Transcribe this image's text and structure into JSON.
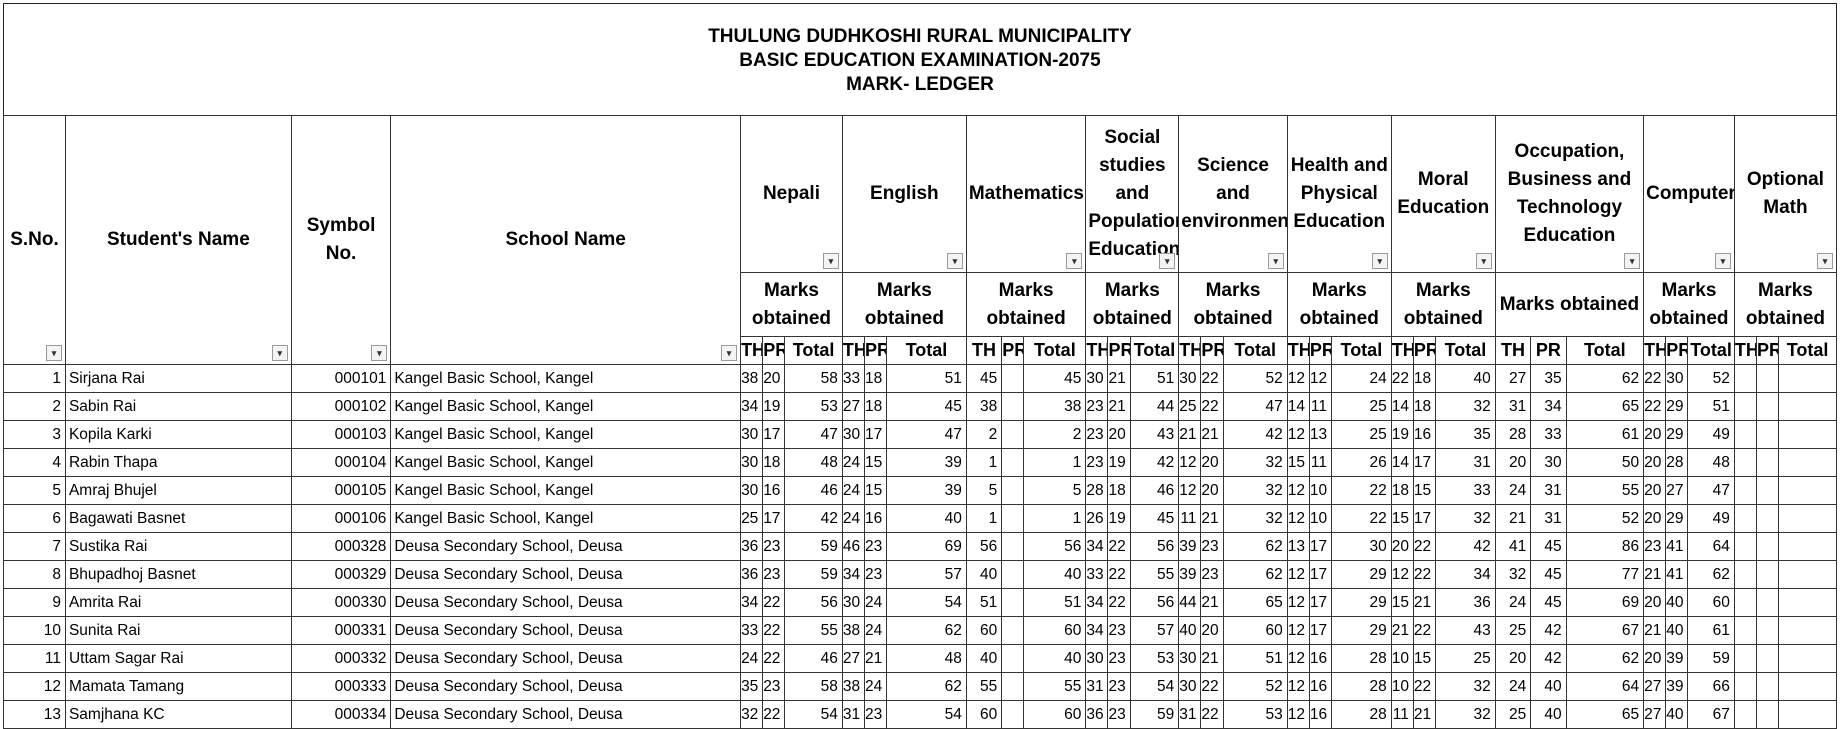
{
  "title": {
    "line1": "THULUNG DUDHKOSHI RURAL MUNICIPALITY",
    "line2": "BASIC EDUCATION EXAMINATION-2075",
    "line3": "MARK- LEDGER"
  },
  "columns": {
    "sno": "S.No.",
    "student_name": "Student's Name",
    "symbol_no": "Symbol No.",
    "school_name": "School Name"
  },
  "subjects": [
    "Nepali",
    "English",
    "Mathematics",
    "Social studies and Population Education",
    "Science and environment",
    "Health and Physical Education",
    "Moral Education",
    "Occupation, Business and Technology Education",
    "Computer",
    "Optional Math"
  ],
  "marks_label": "Marks obtained",
  "sub_labels": {
    "th": "TH",
    "pr": "PR",
    "total": "Total"
  },
  "filter_glyph": "▾",
  "rows": [
    {
      "sno": "1",
      "name": "Sirjana Rai",
      "symbol": "000101",
      "school": "Kangel Basic School, Kangel",
      "marks": [
        [
          "38",
          "20",
          "58"
        ],
        [
          "33",
          "18",
          "51"
        ],
        [
          "45",
          "",
          "45"
        ],
        [
          "30",
          "21",
          "51"
        ],
        [
          "30",
          "22",
          "52"
        ],
        [
          "12",
          "12",
          "24"
        ],
        [
          "22",
          "18",
          "40"
        ],
        [
          "27",
          "35",
          "62"
        ],
        [
          "22",
          "30",
          "52"
        ],
        [
          "",
          "",
          ""
        ]
      ]
    },
    {
      "sno": "2",
      "name": "Sabin Rai",
      "symbol": "000102",
      "school": "Kangel Basic School, Kangel",
      "marks": [
        [
          "34",
          "19",
          "53"
        ],
        [
          "27",
          "18",
          "45"
        ],
        [
          "38",
          "",
          "38"
        ],
        [
          "23",
          "21",
          "44"
        ],
        [
          "25",
          "22",
          "47"
        ],
        [
          "14",
          "11",
          "25"
        ],
        [
          "14",
          "18",
          "32"
        ],
        [
          "31",
          "34",
          "65"
        ],
        [
          "22",
          "29",
          "51"
        ],
        [
          "",
          "",
          ""
        ]
      ]
    },
    {
      "sno": "3",
      "name": "Kopila Karki",
      "symbol": "000103",
      "school": "Kangel Basic School, Kangel",
      "marks": [
        [
          "30",
          "17",
          "47"
        ],
        [
          "30",
          "17",
          "47"
        ],
        [
          "2",
          "",
          "2"
        ],
        [
          "23",
          "20",
          "43"
        ],
        [
          "21",
          "21",
          "42"
        ],
        [
          "12",
          "13",
          "25"
        ],
        [
          "19",
          "16",
          "35"
        ],
        [
          "28",
          "33",
          "61"
        ],
        [
          "20",
          "29",
          "49"
        ],
        [
          "",
          "",
          ""
        ]
      ]
    },
    {
      "sno": "4",
      "name": "Rabin Thapa",
      "symbol": "000104",
      "school": "Kangel Basic School, Kangel",
      "marks": [
        [
          "30",
          "18",
          "48"
        ],
        [
          "24",
          "15",
          "39"
        ],
        [
          "1",
          "",
          "1"
        ],
        [
          "23",
          "19",
          "42"
        ],
        [
          "12",
          "20",
          "32"
        ],
        [
          "15",
          "11",
          "26"
        ],
        [
          "14",
          "17",
          "31"
        ],
        [
          "20",
          "30",
          "50"
        ],
        [
          "20",
          "28",
          "48"
        ],
        [
          "",
          "",
          ""
        ]
      ]
    },
    {
      "sno": "5",
      "name": "Amraj Bhujel",
      "symbol": "000105",
      "school": "Kangel Basic School, Kangel",
      "marks": [
        [
          "30",
          "16",
          "46"
        ],
        [
          "24",
          "15",
          "39"
        ],
        [
          "5",
          "",
          "5"
        ],
        [
          "28",
          "18",
          "46"
        ],
        [
          "12",
          "20",
          "32"
        ],
        [
          "12",
          "10",
          "22"
        ],
        [
          "18",
          "15",
          "33"
        ],
        [
          "24",
          "31",
          "55"
        ],
        [
          "20",
          "27",
          "47"
        ],
        [
          "",
          "",
          ""
        ]
      ]
    },
    {
      "sno": "6",
      "name": "Bagawati Basnet",
      "symbol": "000106",
      "school": "Kangel Basic School, Kangel",
      "marks": [
        [
          "25",
          "17",
          "42"
        ],
        [
          "24",
          "16",
          "40"
        ],
        [
          "1",
          "",
          "1"
        ],
        [
          "26",
          "19",
          "45"
        ],
        [
          "11",
          "21",
          "32"
        ],
        [
          "12",
          "10",
          "22"
        ],
        [
          "15",
          "17",
          "32"
        ],
        [
          "21",
          "31",
          "52"
        ],
        [
          "20",
          "29",
          "49"
        ],
        [
          "",
          "",
          ""
        ]
      ]
    },
    {
      "sno": "7",
      "name": "Sustika Rai",
      "symbol": "000328",
      "school": "Deusa Secondary School, Deusa",
      "marks": [
        [
          "36",
          "23",
          "59"
        ],
        [
          "46",
          "23",
          "69"
        ],
        [
          "56",
          "",
          "56"
        ],
        [
          "34",
          "22",
          "56"
        ],
        [
          "39",
          "23",
          "62"
        ],
        [
          "13",
          "17",
          "30"
        ],
        [
          "20",
          "22",
          "42"
        ],
        [
          "41",
          "45",
          "86"
        ],
        [
          "23",
          "41",
          "64"
        ],
        [
          "",
          "",
          ""
        ]
      ]
    },
    {
      "sno": "8",
      "name": "Bhupadhoj Basnet",
      "symbol": "000329",
      "school": "Deusa Secondary School, Deusa",
      "marks": [
        [
          "36",
          "23",
          "59"
        ],
        [
          "34",
          "23",
          "57"
        ],
        [
          "40",
          "",
          "40"
        ],
        [
          "33",
          "22",
          "55"
        ],
        [
          "39",
          "23",
          "62"
        ],
        [
          "12",
          "17",
          "29"
        ],
        [
          "12",
          "22",
          "34"
        ],
        [
          "32",
          "45",
          "77"
        ],
        [
          "21",
          "41",
          "62"
        ],
        [
          "",
          "",
          ""
        ]
      ]
    },
    {
      "sno": "9",
      "name": "Amrita Rai",
      "symbol": "000330",
      "school": "Deusa Secondary School, Deusa",
      "marks": [
        [
          "34",
          "22",
          "56"
        ],
        [
          "30",
          "24",
          "54"
        ],
        [
          "51",
          "",
          "51"
        ],
        [
          "34",
          "22",
          "56"
        ],
        [
          "44",
          "21",
          "65"
        ],
        [
          "12",
          "17",
          "29"
        ],
        [
          "15",
          "21",
          "36"
        ],
        [
          "24",
          "45",
          "69"
        ],
        [
          "20",
          "40",
          "60"
        ],
        [
          "",
          "",
          ""
        ]
      ]
    },
    {
      "sno": "10",
      "name": "Sunita Rai",
      "symbol": "000331",
      "school": "Deusa Secondary School, Deusa",
      "marks": [
        [
          "33",
          "22",
          "55"
        ],
        [
          "38",
          "24",
          "62"
        ],
        [
          "60",
          "",
          "60"
        ],
        [
          "34",
          "23",
          "57"
        ],
        [
          "40",
          "20",
          "60"
        ],
        [
          "12",
          "17",
          "29"
        ],
        [
          "21",
          "22",
          "43"
        ],
        [
          "25",
          "42",
          "67"
        ],
        [
          "21",
          "40",
          "61"
        ],
        [
          "",
          "",
          ""
        ]
      ]
    },
    {
      "sno": "11",
      "name": "Uttam Sagar Rai",
      "symbol": "000332",
      "school": "Deusa Secondary School, Deusa",
      "marks": [
        [
          "24",
          "22",
          "46"
        ],
        [
          "27",
          "21",
          "48"
        ],
        [
          "40",
          "",
          "40"
        ],
        [
          "30",
          "23",
          "53"
        ],
        [
          "30",
          "21",
          "51"
        ],
        [
          "12",
          "16",
          "28"
        ],
        [
          "10",
          "15",
          "25"
        ],
        [
          "20",
          "42",
          "62"
        ],
        [
          "20",
          "39",
          "59"
        ],
        [
          "",
          "",
          ""
        ]
      ]
    },
    {
      "sno": "12",
      "name": "Mamata Tamang",
      "symbol": "000333",
      "school": "Deusa Secondary School, Deusa",
      "marks": [
        [
          "35",
          "23",
          "58"
        ],
        [
          "38",
          "24",
          "62"
        ],
        [
          "55",
          "",
          "55"
        ],
        [
          "31",
          "23",
          "54"
        ],
        [
          "30",
          "22",
          "52"
        ],
        [
          "12",
          "16",
          "28"
        ],
        [
          "10",
          "22",
          "32"
        ],
        [
          "24",
          "40",
          "64"
        ],
        [
          "27",
          "39",
          "66"
        ],
        [
          "",
          "",
          ""
        ]
      ]
    },
    {
      "sno": "13",
      "name": "Samjhana KC",
      "symbol": "000334",
      "school": "Deusa Secondary School, Deusa",
      "marks": [
        [
          "32",
          "22",
          "54"
        ],
        [
          "31",
          "23",
          "54"
        ],
        [
          "60",
          "",
          "60"
        ],
        [
          "36",
          "23",
          "59"
        ],
        [
          "31",
          "22",
          "53"
        ],
        [
          "12",
          "16",
          "28"
        ],
        [
          "11",
          "21",
          "32"
        ],
        [
          "25",
          "40",
          "65"
        ],
        [
          "27",
          "40",
          "67"
        ],
        [
          "",
          "",
          ""
        ]
      ]
    }
  ]
}
